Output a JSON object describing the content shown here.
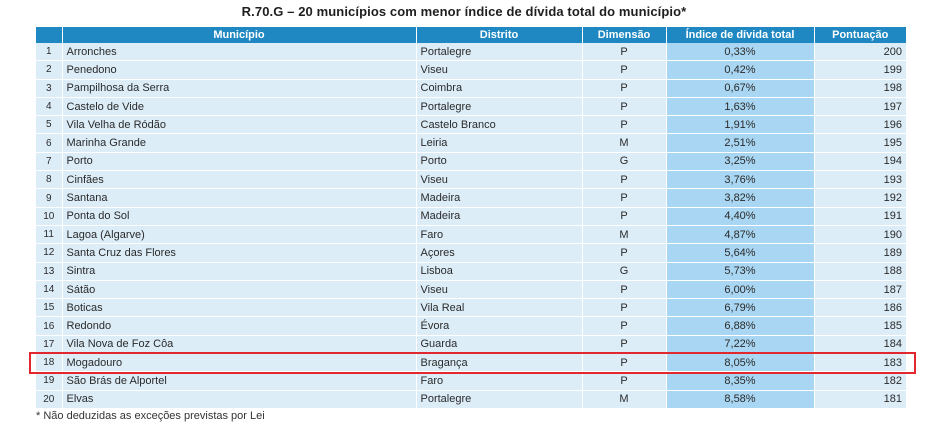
{
  "title": "R.70.G – 20 municípios com menor índice de dívida total do município*",
  "table": {
    "headers": {
      "num": "",
      "municipio": "Município",
      "distrito": "Distrito",
      "dimensao": "Dimensão",
      "indice": "Índice de dívida total",
      "pontuacao": "Pontuação"
    },
    "rows": [
      {
        "num": "1",
        "municipio": "Arronches",
        "distrito": "Portalegre",
        "dimensao": "P",
        "indice": "0,33%",
        "pontuacao": "200"
      },
      {
        "num": "2",
        "municipio": "Penedono",
        "distrito": "Viseu",
        "dimensao": "P",
        "indice": "0,42%",
        "pontuacao": "199"
      },
      {
        "num": "3",
        "municipio": "Pampilhosa da Serra",
        "distrito": "Coimbra",
        "dimensao": "P",
        "indice": "0,67%",
        "pontuacao": "198"
      },
      {
        "num": "4",
        "municipio": "Castelo de Vide",
        "distrito": "Portalegre",
        "dimensao": "P",
        "indice": "1,63%",
        "pontuacao": "197"
      },
      {
        "num": "5",
        "municipio": "Vila Velha de Ródão",
        "distrito": "Castelo Branco",
        "dimensao": "P",
        "indice": "1,91%",
        "pontuacao": "196"
      },
      {
        "num": "6",
        "municipio": "Marinha Grande",
        "distrito": "Leiria",
        "dimensao": "M",
        "indice": "2,51%",
        "pontuacao": "195"
      },
      {
        "num": "7",
        "municipio": "Porto",
        "distrito": "Porto",
        "dimensao": "G",
        "indice": "3,25%",
        "pontuacao": "194"
      },
      {
        "num": "8",
        "municipio": "Cinfães",
        "distrito": "Viseu",
        "dimensao": "P",
        "indice": "3,76%",
        "pontuacao": "193"
      },
      {
        "num": "9",
        "municipio": "Santana",
        "distrito": "Madeira",
        "dimensao": "P",
        "indice": "3,82%",
        "pontuacao": "192"
      },
      {
        "num": "10",
        "municipio": "Ponta do Sol",
        "distrito": "Madeira",
        "dimensao": "P",
        "indice": "4,40%",
        "pontuacao": "191"
      },
      {
        "num": "11",
        "municipio": "Lagoa (Algarve)",
        "distrito": "Faro",
        "dimensao": "M",
        "indice": "4,87%",
        "pontuacao": "190"
      },
      {
        "num": "12",
        "municipio": "Santa Cruz das Flores",
        "distrito": "Açores",
        "dimensao": "P",
        "indice": "5,64%",
        "pontuacao": "189"
      },
      {
        "num": "13",
        "municipio": "Sintra",
        "distrito": "Lisboa",
        "dimensao": "G",
        "indice": "5,73%",
        "pontuacao": "188"
      },
      {
        "num": "14",
        "municipio": "Sátão",
        "distrito": "Viseu",
        "dimensao": "P",
        "indice": "6,00%",
        "pontuacao": "187"
      },
      {
        "num": "15",
        "municipio": "Boticas",
        "distrito": "Vila Real",
        "dimensao": "P",
        "indice": "6,79%",
        "pontuacao": "186"
      },
      {
        "num": "16",
        "municipio": "Redondo",
        "distrito": "Évora",
        "dimensao": "P",
        "indice": "6,88%",
        "pontuacao": "185"
      },
      {
        "num": "17",
        "municipio": "Vila Nova de Foz Côa",
        "distrito": "Guarda",
        "dimensao": "P",
        "indice": "7,22%",
        "pontuacao": "184"
      },
      {
        "num": "18",
        "municipio": "Mogadouro",
        "distrito": "Bragança",
        "dimensao": "P",
        "indice": "8,05%",
        "pontuacao": "183"
      },
      {
        "num": "19",
        "municipio": "São Brás de Alportel",
        "distrito": "Faro",
        "dimensao": "P",
        "indice": "8,35%",
        "pontuacao": "182"
      },
      {
        "num": "20",
        "municipio": "Elvas",
        "distrito": "Portalegre",
        "dimensao": "M",
        "indice": "8,58%",
        "pontuacao": "181"
      }
    ],
    "highlighted_row": "18"
  },
  "footnote": "* Não deduzidas as exceções previstas por Lei",
  "colors": {
    "header": "#1f88c2",
    "row": "#dcedf8",
    "index_column": "#a9d6f2",
    "highlight_border": "#e0282e"
  }
}
